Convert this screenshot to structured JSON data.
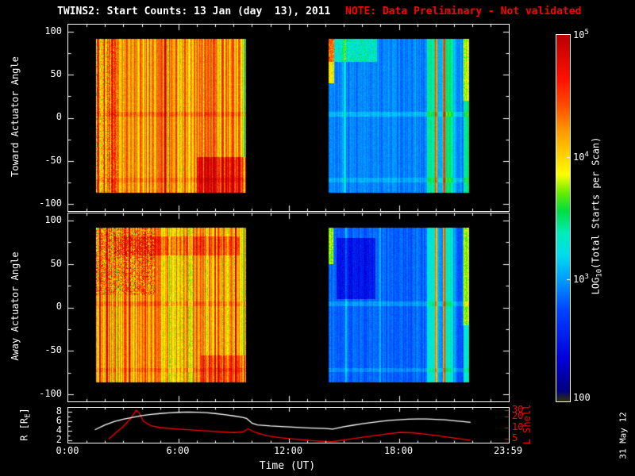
{
  "ui": {
    "title": "TWINS2: Start Counts: 13 Jan (day  13), 2011",
    "note": "NOTE: Data Preliminary - Not validated",
    "left_axis_top": "Toward Actuator Angle",
    "left_axis_mid": "Away Actuator Angle",
    "r_label_pre": "R [R",
    "r_label_sub": "E",
    "r_label_post": "]",
    "l_shell_label": "L Shell",
    "time_label": "Time (UT)",
    "date_stamp": "31 May 12",
    "spec_yticks": [
      "100",
      "50",
      "0",
      "-50",
      "-100"
    ],
    "r_ticks": [
      "8",
      "6",
      "4",
      "2"
    ],
    "l_ticks": [
      "30",
      "20",
      "10",
      "5"
    ],
    "x_ticks": [
      "0:00",
      "6:00",
      "12:00",
      "18:00",
      "23:59"
    ],
    "cb_label_pre": "LOG",
    "cb_label_sub": "10",
    "cb_label_post": "(Total Starts per Scan)",
    "cb_ticks": [
      {
        "base": "10",
        "sup": "5"
      },
      {
        "base": "10",
        "sup": "4"
      },
      {
        "base": "10",
        "sup": "3"
      },
      {
        "base": "100",
        "sup": ""
      }
    ],
    "colors": {
      "axis": "#ffffff",
      "note": "#ff0000",
      "l_shell": "#ff0000",
      "r_line": "#ffffff"
    }
  },
  "chart_data": [
    {
      "type": "heatmap",
      "name": "toward_actuator_spectrogram",
      "title": "Toward Actuator Angle",
      "x_unit": "hours UT",
      "xlim": [
        0,
        23.983
      ],
      "ylim": [
        -108,
        108
      ],
      "angle_extent": [
        -86,
        92
      ],
      "z_unit": "log10(Total Starts per Scan)",
      "zlim": [
        2,
        5
      ],
      "seed": 7,
      "segments": [
        {
          "t0": 1.5,
          "t1": 9.65,
          "base_log": 4.15,
          "col_noise": 0.85,
          "cell_noise": 0.2,
          "stripes": [
            {
              "t": 1.62,
              "w": 0.1,
              "d": 0.6
            },
            {
              "t": 1.95,
              "w": 0.07,
              "d": 0.75
            },
            {
              "t": 2.35,
              "w": 0.1,
              "d": 0.5
            },
            {
              "t": 3.15,
              "w": 0.06,
              "d": 0.6
            },
            {
              "t": 4.05,
              "w": 0.05,
              "d": -0.35
            },
            {
              "t": 5.25,
              "w": 0.06,
              "d": 0.55
            },
            {
              "t": 6.65,
              "w": 0.05,
              "d": 0.5
            },
            {
              "t": 7.85,
              "w": 0.05,
              "d": 0.45
            },
            {
              "t": 8.95,
              "w": 0.06,
              "d": 0.55
            },
            {
              "t": 9.5,
              "w": 0.2,
              "d": -0.45
            }
          ],
          "regions": [
            {
              "t0": 7.0,
              "t1": 9.65,
              "a0": -86,
              "a1": -45,
              "d": 0.5,
              "noise": 0.2
            },
            {
              "t0": 1.5,
              "t1": 2.7,
              "a0": -86,
              "a1": 92,
              "d": 0.1,
              "noise": 0.5
            }
          ]
        },
        {
          "t0": 14.15,
          "t1": 21.8,
          "base_log": 2.92,
          "col_noise": 0.22,
          "cell_noise": 0.12,
          "stripes": [
            {
              "t": 20.0,
              "w": 0.13,
              "d": 1.15
            },
            {
              "t": 20.42,
              "w": 0.13,
              "d": 1.3
            },
            {
              "t": 19.75,
              "w": 0.5,
              "d": 0.35
            },
            {
              "t": 20.7,
              "w": 0.45,
              "d": 0.4
            },
            {
              "t": 21.65,
              "w": 0.3,
              "d": 0.5
            },
            {
              "t": 15.05,
              "w": 0.12,
              "d": 0.35
            }
          ],
          "regions": [
            {
              "t0": 14.15,
              "t1": 14.45,
              "a0": 40,
              "a1": 92,
              "d": 1.0,
              "noise": 0.3
            },
            {
              "t0": 14.15,
              "t1": 16.8,
              "a0": 65,
              "a1": 92,
              "d": 0.4,
              "noise": 0.3
            },
            {
              "t0": 19.5,
              "t1": 21.1,
              "a0": -86,
              "a1": 92,
              "d": 0.15,
              "noise": 0
            },
            {
              "t0": 21.45,
              "t1": 21.8,
              "a0": 20,
              "a1": 92,
              "d": 0.35,
              "noise": 0.2
            }
          ]
        }
      ],
      "rows": [
        {
          "a0": 2,
          "a1": 7,
          "d": 0.15
        },
        {
          "a0": -74,
          "a1": -69,
          "d": 0.12
        }
      ]
    },
    {
      "type": "heatmap",
      "name": "away_actuator_spectrogram",
      "title": "Away Actuator Angle",
      "x_unit": "hours UT",
      "xlim": [
        0,
        23.983
      ],
      "ylim": [
        -108,
        108
      ],
      "angle_extent": [
        -86,
        92
      ],
      "z_unit": "log10(Total Starts per Scan)",
      "zlim": [
        2,
        5
      ],
      "seed": 13,
      "segments": [
        {
          "t0": 1.5,
          "t1": 9.65,
          "base_log": 4.1,
          "col_noise": 0.85,
          "cell_noise": 0.22,
          "stripes": [
            {
              "t": 1.7,
              "w": 0.1,
              "d": 0.55
            },
            {
              "t": 2.1,
              "w": 0.08,
              "d": 0.7
            },
            {
              "t": 2.6,
              "w": 0.1,
              "d": -0.4
            },
            {
              "t": 3.3,
              "w": 0.07,
              "d": 0.6
            },
            {
              "t": 4.2,
              "w": 0.06,
              "d": 0.5
            },
            {
              "t": 5.5,
              "w": 0.05,
              "d": -0.35
            },
            {
              "t": 6.8,
              "w": 0.05,
              "d": 0.5
            },
            {
              "t": 8.0,
              "w": 0.06,
              "d": 0.45
            },
            {
              "t": 9.1,
              "w": 0.07,
              "d": 0.55
            },
            {
              "t": 9.5,
              "w": 0.18,
              "d": -0.4
            }
          ],
          "regions": [
            {
              "t0": 1.5,
              "t1": 4.7,
              "a0": 15,
              "a1": 92,
              "d": 0.1,
              "noise": 0.9
            },
            {
              "t0": 2.5,
              "t1": 9.3,
              "a0": 60,
              "a1": 82,
              "d": 0.3,
              "noise": 0.2
            },
            {
              "t0": 7.2,
              "t1": 9.65,
              "a0": -86,
              "a1": -55,
              "d": 0.35,
              "noise": 0.2
            }
          ]
        },
        {
          "t0": 14.15,
          "t1": 21.8,
          "base_log": 2.82,
          "col_noise": 0.22,
          "cell_noise": 0.12,
          "stripes": [
            {
              "t": 20.0,
              "w": 0.13,
              "d": 1.1
            },
            {
              "t": 20.42,
              "w": 0.13,
              "d": 1.25
            },
            {
              "t": 19.75,
              "w": 0.5,
              "d": 0.3
            },
            {
              "t": 20.7,
              "w": 0.45,
              "d": 0.35
            },
            {
              "t": 21.65,
              "w": 0.3,
              "d": 0.5
            },
            {
              "t": 15.1,
              "w": 0.1,
              "d": 0.3
            },
            {
              "t": 16.95,
              "w": 0.08,
              "d": 0.25
            }
          ],
          "regions": [
            {
              "t0": 14.6,
              "t1": 16.7,
              "a0": 10,
              "a1": 80,
              "d": -0.35,
              "noise": 0.15
            },
            {
              "t0": 14.15,
              "t1": 14.4,
              "a0": 50,
              "a1": 92,
              "d": 0.9,
              "noise": 0.3
            },
            {
              "t0": 19.5,
              "t1": 21.1,
              "a0": -86,
              "a1": 92,
              "d": 0.15,
              "noise": 0
            },
            {
              "t0": 21.45,
              "t1": 21.8,
              "a0": -20,
              "a1": 92,
              "d": 0.45,
              "noise": 0.2
            }
          ]
        }
      ],
      "rows": [
        {
          "a0": 2,
          "a1": 7,
          "d": 0.15
        },
        {
          "a0": -74,
          "a1": -69,
          "d": 0.12
        }
      ]
    },
    {
      "type": "line",
      "name": "orbit_parameters",
      "x_unit": "hours UT",
      "xlim": [
        0,
        23.983
      ],
      "series": [
        {
          "name": "R [RE]",
          "color": "#ffffff",
          "scale": "linear",
          "ylim": [
            1.5,
            8.8
          ],
          "points": [
            [
              1.45,
              4.2
            ],
            [
              2,
              5.2
            ],
            [
              2.5,
              5.9
            ],
            [
              3,
              6.4
            ],
            [
              3.5,
              6.8
            ],
            [
              4,
              7.15
            ],
            [
              4.5,
              7.4
            ],
            [
              5,
              7.6
            ],
            [
              5.5,
              7.75
            ],
            [
              6,
              7.85
            ],
            [
              6.5,
              7.9
            ],
            [
              7,
              7.88
            ],
            [
              7.5,
              7.78
            ],
            [
              8,
              7.6
            ],
            [
              8.5,
              7.38
            ],
            [
              9,
              7.1
            ],
            [
              9.5,
              6.8
            ],
            [
              9.7,
              6.6
            ],
            [
              10,
              5.6
            ],
            [
              10.3,
              5.2
            ],
            [
              11,
              5.0
            ],
            [
              12,
              4.8
            ],
            [
              13,
              4.6
            ],
            [
              14,
              4.45
            ],
            [
              14.4,
              4.35
            ],
            [
              15,
              4.85
            ],
            [
              15.5,
              5.15
            ],
            [
              16,
              5.45
            ],
            [
              16.5,
              5.7
            ],
            [
              17,
              5.95
            ],
            [
              17.5,
              6.15
            ],
            [
              18,
              6.3
            ],
            [
              18.5,
              6.4
            ],
            [
              19,
              6.45
            ],
            [
              19.5,
              6.45
            ],
            [
              20,
              6.38
            ],
            [
              20.5,
              6.28
            ],
            [
              21,
              6.1
            ],
            [
              21.5,
              5.92
            ],
            [
              21.9,
              5.75
            ]
          ]
        },
        {
          "name": "L Shell",
          "color": "#ff0000",
          "scale": "log",
          "ylim_log": [
            0.60206,
            1.54407
          ],
          "points": [
            [
              2.2,
              5.0
            ],
            [
              2.6,
              7.5
            ],
            [
              3.0,
              11
            ],
            [
              3.4,
              18
            ],
            [
              3.7,
              30
            ],
            [
              3.85,
              26
            ],
            [
              4.1,
              15
            ],
            [
              4.5,
              11.5
            ],
            [
              5,
              10.2
            ],
            [
              6,
              9.3
            ],
            [
              7,
              8.6
            ],
            [
              8,
              8.0
            ],
            [
              9,
              7.5
            ],
            [
              9.5,
              7.8
            ],
            [
              9.8,
              9.5
            ],
            [
              10.2,
              7.5
            ],
            [
              10.8,
              6.2
            ],
            [
              11.5,
              5.5
            ],
            [
              12.5,
              4.9
            ],
            [
              13.5,
              4.45
            ],
            [
              14.3,
              4.2
            ],
            [
              15,
              4.7
            ],
            [
              15.8,
              5.4
            ],
            [
              16.6,
              6.1
            ],
            [
              17.4,
              6.9
            ],
            [
              18.1,
              7.6
            ],
            [
              18.7,
              7.4
            ],
            [
              19.3,
              6.9
            ],
            [
              20,
              6.3
            ],
            [
              20.7,
              5.6
            ],
            [
              21.3,
              5.1
            ],
            [
              21.9,
              4.65
            ]
          ]
        }
      ]
    }
  ],
  "colorbar": {
    "range_log": [
      2,
      5
    ],
    "stops": [
      [
        0.0,
        "#333300"
      ],
      [
        0.03,
        "#000080"
      ],
      [
        0.12,
        "#0000dd"
      ],
      [
        0.25,
        "#0044ff"
      ],
      [
        0.33,
        "#0099ff"
      ],
      [
        0.4,
        "#00ddee"
      ],
      [
        0.46,
        "#00eebb"
      ],
      [
        0.52,
        "#00dd44"
      ],
      [
        0.57,
        "#66ee00"
      ],
      [
        0.62,
        "#ffff00"
      ],
      [
        0.68,
        "#ffcc00"
      ],
      [
        0.74,
        "#ff9900"
      ],
      [
        0.8,
        "#ff5500"
      ],
      [
        0.88,
        "#ff1100"
      ],
      [
        1.0,
        "#bb0000"
      ]
    ]
  }
}
